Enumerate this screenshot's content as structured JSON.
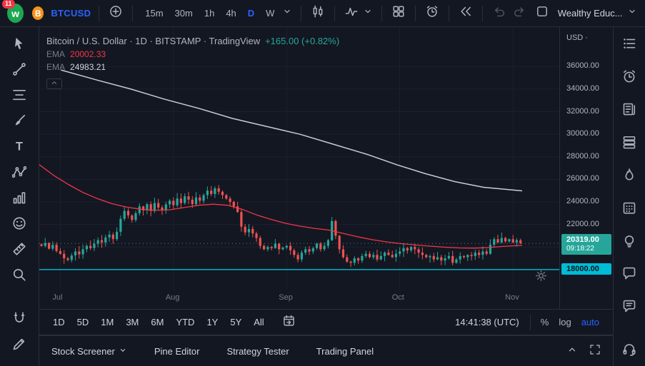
{
  "topbar": {
    "notification_badge": "11",
    "logo_letter": "w",
    "symbol_icon_letter": "B",
    "symbol": "BTCUSD",
    "intervals": [
      {
        "label": "15m",
        "active": false
      },
      {
        "label": "30m",
        "active": false
      },
      {
        "label": "1h",
        "active": false
      },
      {
        "label": "4h",
        "active": false
      },
      {
        "label": "D",
        "active": true
      },
      {
        "label": "W",
        "active": false
      }
    ],
    "account": "Wealthy Educ...",
    "accent_color": "#2962ff"
  },
  "left_toolbar": {
    "tools": [
      "cursor",
      "trend-line",
      "fib-retracement",
      "brush",
      "text",
      "xabcd-pattern",
      "forecast-bars",
      "emoji",
      "measure-ruler",
      "zoom-in",
      "magnet",
      "edit-pencil"
    ]
  },
  "right_toolbar": {
    "panels": [
      "watchlist",
      "alerts-clock",
      "news",
      "lists",
      "hotlists-flame",
      "calendar",
      "ideas-lightbulb",
      "chat",
      "comments",
      "help-headset"
    ]
  },
  "chart": {
    "legend": {
      "title": "Bitcoin / U.S. Dollar · 1D · BITSTAMP · TradingView",
      "change": "+165.00 (+0.82%)"
    },
    "indicators": [
      {
        "name": "EMA",
        "value": "20002.33"
      },
      {
        "name": "EMA",
        "value": "24983.21"
      }
    ],
    "price_axis": {
      "currency_label": "USD ·",
      "last_price": "20319.00",
      "countdown": "09:18:22",
      "hline_price": "18000.00"
    }
  },
  "chart_data": {
    "type": "candlestick",
    "title": "Bitcoin / U.S. Dollar",
    "exchange": "BITSTAMP",
    "interval": "1D",
    "last_price": 20319.0,
    "change": 165.0,
    "change_pct": 0.82,
    "y_axis_range": [
      14700,
      39500
    ],
    "y_ticks": [
      36000,
      34000,
      32000,
      30000,
      28000,
      26000,
      24000,
      22000
    ],
    "x_months": [
      {
        "label": "Jul",
        "index": 5
      },
      {
        "label": "Aug",
        "index": 35
      },
      {
        "label": "Sep",
        "index": 65
      },
      {
        "label": "Oct",
        "index": 95
      },
      {
        "label": "Nov",
        "index": 125
      }
    ],
    "horizontal_line": 18000,
    "closes": [
      20100,
      20350,
      19850,
      20200,
      19650,
      19400,
      19000,
      18850,
      19250,
      19600,
      19350,
      19800,
      20100,
      19900,
      20300,
      20600,
      20400,
      20850,
      21100,
      20700,
      21350,
      22500,
      23200,
      22800,
      22400,
      23000,
      23600,
      23250,
      23800,
      23200,
      23900,
      23500,
      23250,
      23780,
      24100,
      23700,
      24300,
      23900,
      24500,
      24200,
      23800,
      24400,
      24100,
      24600,
      25000,
      24700,
      25200,
      24900,
      24600,
      24300,
      24000,
      23600,
      23100,
      21800,
      21300,
      21600,
      21200,
      20800,
      20100,
      19800,
      20000,
      19900,
      20300,
      19800,
      19950,
      20100,
      19700,
      19300,
      18900,
      19500,
      19800,
      19600,
      19900,
      20300,
      19800,
      20100,
      20600,
      22300,
      21000,
      19800,
      19100,
      18700,
      18600,
      19000,
      18800,
      19200,
      19400,
      19100,
      19300,
      18900,
      19200,
      19500,
      19300,
      19100,
      19400,
      19600,
      19900,
      19700,
      20000,
      19800,
      19500,
      19300,
      19100,
      19200,
      18900,
      19100,
      18800,
      19000,
      19200,
      18600,
      18900,
      19200,
      19100,
      19300,
      19200,
      19500,
      19300,
      19600,
      19400,
      20200,
      20700,
      20400,
      20800,
      20500,
      20700,
      20400,
      20600,
      20319
    ],
    "series_overlays": [
      {
        "name": "EMA",
        "display_value": 20002.33,
        "color": "#f23645",
        "width": 1.3,
        "points": [
          [
            0,
            27300
          ],
          [
            0.03,
            26350
          ],
          [
            0.06,
            25550
          ],
          [
            0.09,
            24850
          ],
          [
            0.12,
            24300
          ],
          [
            0.15,
            23850
          ],
          [
            0.18,
            23550
          ],
          [
            0.21,
            23350
          ],
          [
            0.24,
            23250
          ],
          [
            0.27,
            23300
          ],
          [
            0.3,
            23500
          ],
          [
            0.33,
            23700
          ],
          [
            0.36,
            23800
          ],
          [
            0.39,
            23700
          ],
          [
            0.42,
            23350
          ],
          [
            0.45,
            22850
          ],
          [
            0.48,
            22450
          ],
          [
            0.51,
            22100
          ],
          [
            0.54,
            21850
          ],
          [
            0.57,
            21650
          ],
          [
            0.6,
            21500
          ],
          [
            0.63,
            21200
          ],
          [
            0.66,
            20900
          ],
          [
            0.69,
            20650
          ],
          [
            0.72,
            20450
          ],
          [
            0.75,
            20300
          ],
          [
            0.78,
            20180
          ],
          [
            0.81,
            20080
          ],
          [
            0.84,
            19980
          ],
          [
            0.87,
            19920
          ],
          [
            0.9,
            19900
          ],
          [
            0.93,
            19950
          ],
          [
            0.96,
            20050
          ],
          [
            1,
            20150
          ]
        ]
      },
      {
        "name": "EMA",
        "display_value": 24983.21,
        "color": "#c7ccd6",
        "width": 1.5,
        "points": [
          [
            0.045,
            35700
          ],
          [
            0.12,
            34800
          ],
          [
            0.19,
            34000
          ],
          [
            0.26,
            33100
          ],
          [
            0.33,
            32300
          ],
          [
            0.4,
            31400
          ],
          [
            0.47,
            30700
          ],
          [
            0.54,
            30000
          ],
          [
            0.61,
            29100
          ],
          [
            0.68,
            28200
          ],
          [
            0.74,
            27300
          ],
          [
            0.8,
            26500
          ],
          [
            0.86,
            25800
          ],
          [
            0.92,
            25300
          ],
          [
            1,
            24983
          ]
        ]
      }
    ],
    "colors": {
      "up": "#26a69a",
      "down": "#ef5350",
      "hline": "#00bcd4",
      "last_price_badge": "#26a69a",
      "grid": "#1c2030"
    }
  },
  "bottom_toolbar": {
    "ranges": [
      "1D",
      "5D",
      "1M",
      "3M",
      "6M",
      "YTD",
      "1Y",
      "5Y",
      "All"
    ],
    "clock": "14:41:38 (UTC)",
    "percent": "%",
    "log": "log",
    "auto": "auto"
  },
  "footer": {
    "tabs": [
      "Stock Screener",
      "Pine Editor",
      "Strategy Tester",
      "Trading Panel"
    ]
  }
}
